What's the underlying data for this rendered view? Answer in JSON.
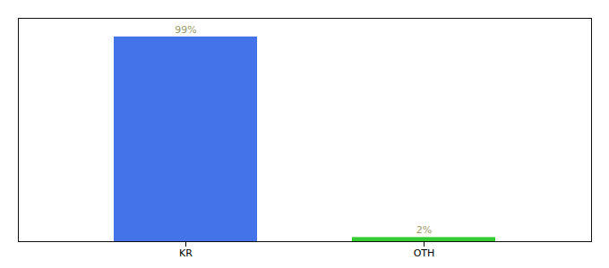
{
  "chart_data": {
    "type": "bar",
    "categories": [
      "KR",
      "OTH"
    ],
    "values": [
      99,
      2
    ],
    "value_labels": [
      "99%",
      "2%"
    ],
    "colors": [
      "#4472e8",
      "#33cc33"
    ],
    "ylim": [
      0,
      108
    ],
    "data_labels": true,
    "tick_labels": "x"
  }
}
